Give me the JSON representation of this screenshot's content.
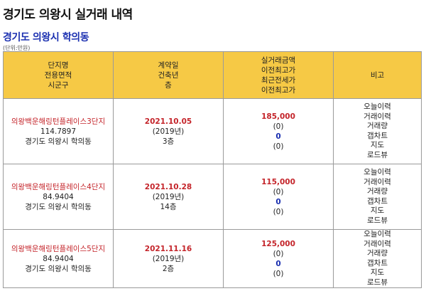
{
  "page": {
    "title": "경기도 의왕시 실거래 내역",
    "region": "경기도 의왕시 학의동",
    "unit_note": "(단위:만원)"
  },
  "table": {
    "headers": {
      "col1": [
        "단지명",
        "전용면적",
        "시군구"
      ],
      "col2": [
        "계약일",
        "건축년",
        "층"
      ],
      "col3": [
        "실거래금액",
        "이전최고가",
        "최근전세가",
        "이전최고가"
      ],
      "col4": [
        "비고"
      ]
    },
    "rows": [
      {
        "name": "의왕백운해링턴플레이스3단지",
        "area": "114.7897",
        "district": "경기도 의왕시 학의동",
        "date": "2021.10.05",
        "built": "(2019년)",
        "floor": "3층",
        "price": "185,000",
        "prev_high": "(0)",
        "jeonse": "0",
        "jeonse_prev_high": "(0)",
        "links": [
          "오늘이력",
          "거래이력",
          "거래량",
          "갭차트",
          "지도",
          "로드뷰"
        ]
      },
      {
        "name": "의왕백운해링턴플레이스4단지",
        "area": "84.9404",
        "district": "경기도 의왕시 학의동",
        "date": "2021.10.28",
        "built": "(2019년)",
        "floor": "14층",
        "price": "115,000",
        "prev_high": "(0)",
        "jeonse": "0",
        "jeonse_prev_high": "(0)",
        "links": [
          "오늘이력",
          "거래이력",
          "거래량",
          "갭차트",
          "지도",
          "로드뷰"
        ]
      },
      {
        "name": "의왕백운해링턴플레이스5단지",
        "area": "84.9404",
        "district": "경기도 의왕시 학의동",
        "date": "2021.11.16",
        "built": "(2019년)",
        "floor": "2층",
        "price": "125,000",
        "prev_high": "(0)",
        "jeonse": "0",
        "jeonse_prev_high": "(0)",
        "links": [
          "오늘이력",
          "거래이력",
          "거래량",
          "갭차트",
          "지도",
          "로드뷰"
        ]
      }
    ]
  }
}
